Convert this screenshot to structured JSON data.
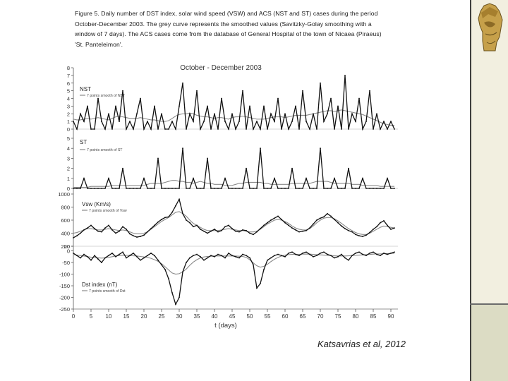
{
  "caption": "Figure 5. Daily number of DST index, solar wind speed (VSW) and ACS (NST and ST) cases during the period October-December 2003. The grey curve represents the smoothed values (Savitzky-Golay smoothing with a window of 7 days). The ACS cases come from the database of General Hospital of the town of Nicaea (Piraeus) 'St. Panteleimon'.",
  "citation": "Katsavrias et al, 2012",
  "colors": {
    "data": "#111111",
    "smooth": "#8a8a8a",
    "sidebar": "#f2efe0",
    "sidebar_dark": "#dcdcc4"
  },
  "icons": {
    "logo": "greek-warrior-head-icon"
  },
  "chart_data": {
    "type": "line",
    "title": "October - December 2003",
    "x_label": "t (days)",
    "x_ticks": [
      0,
      5,
      10,
      15,
      20,
      25,
      30,
      35,
      40,
      45,
      50,
      55,
      60,
      65,
      70,
      75,
      80,
      85,
      90
    ],
    "xlim": [
      0,
      92
    ],
    "panels": [
      {
        "name": "nst",
        "label": "NST",
        "legend": "7 points smooth of NST",
        "ylim": [
          0,
          8
        ],
        "y_ticks": [
          0,
          1,
          2,
          3,
          4,
          5,
          6,
          7,
          8
        ],
        "data": [
          1,
          0,
          2,
          1,
          3,
          0,
          0,
          4,
          1,
          0,
          2,
          0,
          3,
          1,
          5,
          0,
          1,
          0,
          2,
          4,
          0,
          1,
          0,
          3,
          0,
          2,
          0,
          0,
          1,
          0,
          3,
          6,
          0,
          2,
          1,
          5,
          0,
          1,
          3,
          0,
          2,
          0,
          4,
          1,
          0,
          2,
          0,
          1,
          5,
          0,
          3,
          0,
          1,
          0,
          3,
          0,
          2,
          1,
          4,
          0,
          2,
          0,
          1,
          3,
          0,
          5,
          1,
          0,
          2,
          0,
          6,
          1,
          2,
          4,
          0,
          3,
          0,
          7,
          0,
          2,
          1,
          4,
          0,
          1,
          5,
          0,
          2,
          0,
          1,
          0,
          1,
          0
        ],
        "smooth": [
          1.3,
          1.2,
          1.2,
          1.3,
          1.4,
          1.3,
          1.4,
          1.5,
          1.4,
          1.3,
          1.2,
          1.4,
          1.6,
          1.7,
          1.6,
          1.5,
          1.4,
          1.4,
          1.4,
          1.5,
          1.4,
          1.3,
          1.2,
          1.2,
          1.1,
          1.0,
          1.0,
          1.1,
          1.4,
          1.7,
          1.9,
          2.0,
          2.0,
          2.1,
          2.0,
          1.8,
          1.7,
          1.6,
          1.6,
          1.5,
          1.4,
          1.5,
          1.5,
          1.4,
          1.3,
          1.5,
          1.6,
          1.6,
          1.7,
          1.6,
          1.5,
          1.4,
          1.3,
          1.3,
          1.3,
          1.4,
          1.5,
          1.6,
          1.6,
          1.6,
          1.5,
          1.6,
          1.7,
          1.8,
          1.8,
          1.8,
          1.8,
          1.9,
          2.0,
          2.1,
          2.2,
          2.3,
          2.4,
          2.4,
          2.3,
          2.4,
          2.5,
          2.4,
          2.3,
          2.2,
          2.1,
          2.0,
          1.9,
          1.7,
          1.5,
          1.3,
          1.1,
          0.9,
          0.7,
          0.6,
          0.5,
          0.5
        ]
      },
      {
        "name": "st",
        "label": "ST",
        "legend": "7 points smooth of ST",
        "ylim": [
          0,
          5
        ],
        "y_ticks": [
          0,
          1,
          2,
          3,
          4,
          5
        ],
        "data": [
          0,
          0,
          0,
          1,
          0,
          0,
          0,
          0,
          0,
          0,
          1,
          0,
          0,
          0,
          2,
          0,
          0,
          0,
          0,
          0,
          1,
          0,
          0,
          0,
          3,
          0,
          0,
          0,
          0,
          0,
          0,
          4,
          0,
          0,
          1,
          0,
          0,
          0,
          3,
          0,
          0,
          0,
          0,
          1,
          0,
          0,
          0,
          0,
          0,
          2,
          0,
          0,
          0,
          4,
          0,
          0,
          0,
          1,
          0,
          0,
          0,
          0,
          2,
          0,
          0,
          0,
          1,
          0,
          0,
          0,
          4,
          0,
          0,
          0,
          1,
          0,
          0,
          0,
          2,
          0,
          0,
          0,
          1,
          0,
          0,
          0,
          0,
          0,
          0,
          1,
          0,
          0
        ],
        "smooth": [
          0.1,
          0.1,
          0.1,
          0.1,
          0.1,
          0.2,
          0.2,
          0.2,
          0.2,
          0.2,
          0.2,
          0.3,
          0.3,
          0.3,
          0.3,
          0.3,
          0.3,
          0.3,
          0.3,
          0.3,
          0.3,
          0.4,
          0.5,
          0.5,
          0.5,
          0.5,
          0.6,
          0.7,
          0.8,
          0.8,
          0.7,
          0.7,
          0.6,
          0.6,
          0.5,
          0.6,
          0.7,
          0.6,
          0.5,
          0.5,
          0.4,
          0.4,
          0.4,
          0.3,
          0.3,
          0.3,
          0.4,
          0.5,
          0.5,
          0.6,
          0.6,
          0.6,
          0.6,
          0.6,
          0.5,
          0.5,
          0.4,
          0.4,
          0.4,
          0.4,
          0.4,
          0.4,
          0.5,
          0.5,
          0.5,
          0.5,
          0.5,
          0.5,
          0.6,
          0.7,
          0.7,
          0.7,
          0.7,
          0.6,
          0.5,
          0.5,
          0.5,
          0.5,
          0.5,
          0.4,
          0.4,
          0.4,
          0.3,
          0.3,
          0.3,
          0.3,
          0.3,
          0.2,
          0.2,
          0.2,
          0.2,
          0.2
        ]
      },
      {
        "name": "vsw",
        "label": "Vsw (Km/s)",
        "legend": "7 points smooth of Vsw",
        "ylim": [
          200,
          1000
        ],
        "y_ticks": [
          200,
          400,
          600,
          800,
          1000
        ],
        "data": [
          330,
          360,
          400,
          450,
          480,
          520,
          470,
          430,
          420,
          480,
          520,
          450,
          400,
          430,
          500,
          460,
          390,
          360,
          340,
          350,
          370,
          420,
          470,
          520,
          570,
          610,
          640,
          650,
          720,
          820,
          920,
          700,
          600,
          560,
          500,
          520,
          460,
          430,
          400,
          430,
          460,
          420,
          440,
          500,
          520,
          470,
          430,
          420,
          450,
          440,
          400,
          380,
          420,
          470,
          520,
          560,
          600,
          630,
          660,
          610,
          560,
          520,
          480,
          450,
          420,
          430,
          440,
          480,
          540,
          600,
          630,
          650,
          700,
          660,
          610,
          560,
          510,
          470,
          440,
          420,
          380,
          360,
          350,
          370,
          410,
          460,
          500,
          560,
          590,
          520,
          460,
          480
        ],
        "smooth": [
          400,
          410,
          430,
          450,
          470,
          470,
          460,
          450,
          450,
          460,
          470,
          460,
          450,
          440,
          450,
          440,
          420,
          400,
          390,
          390,
          400,
          420,
          460,
          500,
          540,
          580,
          610,
          640,
          680,
          720,
          730,
          700,
          660,
          600,
          550,
          520,
          490,
          460,
          440,
          440,
          440,
          440,
          450,
          460,
          470,
          460,
          450,
          440,
          440,
          430,
          420,
          420,
          430,
          460,
          500,
          540,
          570,
          600,
          610,
          600,
          580,
          550,
          510,
          480,
          460,
          450,
          450,
          470,
          510,
          560,
          600,
          630,
          640,
          640,
          620,
          590,
          550,
          510,
          470,
          440,
          410,
          390,
          380,
          380,
          400,
          430,
          460,
          490,
          510,
          500,
          490,
          480
        ]
      },
      {
        "name": "dst",
        "label": "Dst index (nT)",
        "legend": "7 points smooth of Dst",
        "ylim": [
          -250,
          20
        ],
        "y_ticks": [
          20,
          0,
          -50,
          -100,
          -150,
          -200,
          -250
        ],
        "data": [
          -10,
          -20,
          -30,
          -15,
          -25,
          -40,
          -20,
          -35,
          -50,
          -30,
          -20,
          -10,
          -25,
          -15,
          -5,
          -30,
          -20,
          -10,
          -25,
          -40,
          -30,
          -20,
          -10,
          -20,
          -40,
          -60,
          -80,
          -120,
          -180,
          -230,
          -200,
          -90,
          -50,
          -30,
          -20,
          -15,
          -25,
          -40,
          -30,
          -20,
          -25,
          -15,
          -20,
          -30,
          -10,
          -20,
          -25,
          -30,
          -15,
          -20,
          -30,
          -60,
          -160,
          -140,
          -80,
          -40,
          -30,
          -20,
          -15,
          -20,
          -25,
          -10,
          -5,
          -15,
          -20,
          -10,
          -5,
          -15,
          -25,
          -20,
          -10,
          -5,
          -15,
          -20,
          -30,
          -25,
          -15,
          -30,
          -40,
          -20,
          -10,
          -5,
          -15,
          -20,
          -10,
          -5,
          -15,
          -20,
          -10,
          -15,
          -10,
          -5
        ],
        "smooth": [
          -15,
          -18,
          -20,
          -22,
          -25,
          -27,
          -29,
          -30,
          -31,
          -30,
          -28,
          -25,
          -22,
          -20,
          -19,
          -19,
          -20,
          -21,
          -22,
          -24,
          -26,
          -28,
          -32,
          -38,
          -45,
          -55,
          -68,
          -82,
          -95,
          -100,
          -98,
          -90,
          -78,
          -62,
          -48,
          -38,
          -30,
          -26,
          -24,
          -23,
          -22,
          -22,
          -22,
          -22,
          -22,
          -22,
          -22,
          -23,
          -24,
          -28,
          -38,
          -52,
          -64,
          -70,
          -66,
          -58,
          -46,
          -36,
          -28,
          -22,
          -18,
          -16,
          -15,
          -15,
          -15,
          -14,
          -14,
          -14,
          -15,
          -16,
          -17,
          -18,
          -19,
          -20,
          -21,
          -22,
          -22,
          -22,
          -21,
          -20,
          -19,
          -18,
          -17,
          -16,
          -15,
          -14,
          -13,
          -13,
          -12,
          -12,
          -11,
          -10
        ]
      }
    ]
  }
}
